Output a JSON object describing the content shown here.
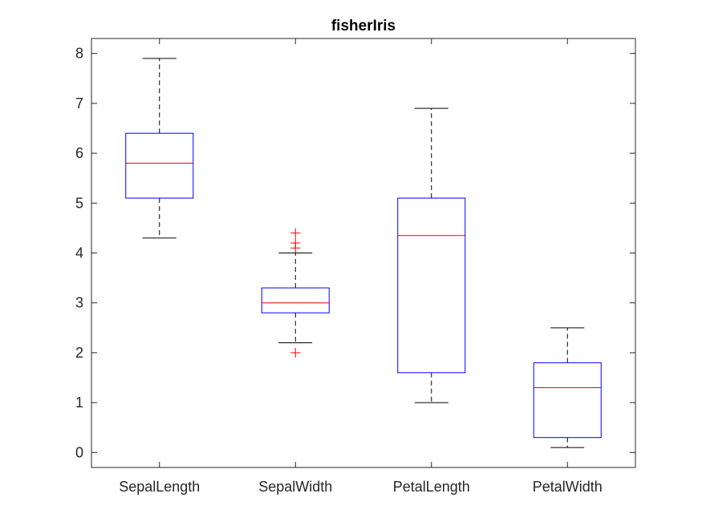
{
  "chart_data": {
    "type": "box",
    "title": "fisherIris",
    "xlabel": "",
    "ylabel": "",
    "ylim": [
      -0.3,
      8.3
    ],
    "yticks": [
      0,
      1,
      2,
      3,
      4,
      5,
      6,
      7,
      8
    ],
    "grid": false,
    "categories": [
      "SepalLength",
      "SepalWidth",
      "PetalLength",
      "PetalWidth"
    ],
    "boxes": [
      {
        "category": "SepalLength",
        "whisker_low": 4.3,
        "q1": 5.1,
        "median": 5.8,
        "q3": 6.4,
        "whisker_high": 7.9,
        "outliers": []
      },
      {
        "category": "SepalWidth",
        "whisker_low": 2.2,
        "q1": 2.8,
        "median": 3.0,
        "q3": 3.3,
        "whisker_high": 4.0,
        "outliers": [
          2.0,
          4.1,
          4.2,
          4.4
        ]
      },
      {
        "category": "PetalLength",
        "whisker_low": 1.0,
        "q1": 1.6,
        "median": 4.35,
        "q3": 5.1,
        "whisker_high": 6.9,
        "outliers": []
      },
      {
        "category": "PetalWidth",
        "whisker_low": 0.1,
        "q1": 0.3,
        "median": 1.3,
        "q3": 1.8,
        "whisker_high": 2.5,
        "outliers": []
      }
    ],
    "colors": {
      "box": "#0000ff",
      "median": "#ff0000",
      "whisker": "#000000",
      "outlier": "#ff0000"
    }
  }
}
